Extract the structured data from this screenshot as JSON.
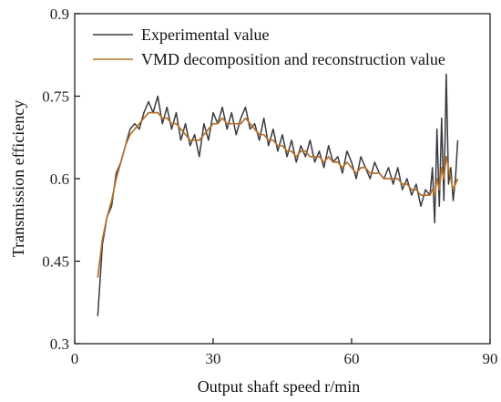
{
  "chart_data": {
    "type": "line",
    "xlabel": "Output shaft speed r/min",
    "ylabel": "Transmission efficiency",
    "xlim": [
      0,
      90
    ],
    "ylim": [
      0.3,
      0.9
    ],
    "xticks": [
      0,
      30,
      60,
      90
    ],
    "yticks": [
      0.3,
      0.45,
      0.6,
      0.75,
      0.9
    ],
    "xtick_labels": [
      "0",
      "30",
      "60",
      "90"
    ],
    "ytick_labels": [
      "0.3",
      "0.45",
      "0.6",
      "0.75",
      "0.9"
    ],
    "legend_position": "top-right",
    "series": [
      {
        "name": "Experimental value",
        "color": "#3a3a40",
        "x": [
          5,
          6,
          7,
          8,
          9,
          10,
          11,
          12,
          13,
          14,
          15,
          16,
          17,
          18,
          19,
          20,
          21,
          22,
          23,
          24,
          25,
          26,
          27,
          28,
          29,
          30,
          31,
          32,
          33,
          34,
          35,
          36,
          37,
          38,
          39,
          40,
          41,
          42,
          43,
          44,
          45,
          46,
          47,
          48,
          49,
          50,
          51,
          52,
          53,
          54,
          55,
          56,
          57,
          58,
          59,
          60,
          61,
          62,
          63,
          64,
          65,
          66,
          67,
          68,
          69,
          70,
          71,
          72,
          73,
          74,
          75,
          76,
          77,
          77.5,
          78,
          78.5,
          79,
          79.5,
          80,
          80.5,
          81,
          81.5,
          82,
          82.5,
          83
        ],
        "y": [
          0.35,
          0.48,
          0.53,
          0.55,
          0.61,
          0.63,
          0.66,
          0.69,
          0.7,
          0.69,
          0.72,
          0.74,
          0.72,
          0.75,
          0.7,
          0.73,
          0.69,
          0.72,
          0.67,
          0.7,
          0.66,
          0.68,
          0.64,
          0.7,
          0.67,
          0.72,
          0.7,
          0.73,
          0.69,
          0.72,
          0.68,
          0.71,
          0.73,
          0.69,
          0.7,
          0.67,
          0.71,
          0.66,
          0.69,
          0.65,
          0.68,
          0.64,
          0.67,
          0.63,
          0.66,
          0.64,
          0.67,
          0.63,
          0.65,
          0.62,
          0.66,
          0.63,
          0.64,
          0.61,
          0.65,
          0.63,
          0.6,
          0.64,
          0.62,
          0.6,
          0.63,
          0.61,
          0.6,
          0.62,
          0.59,
          0.62,
          0.58,
          0.6,
          0.57,
          0.59,
          0.55,
          0.58,
          0.57,
          0.62,
          0.52,
          0.69,
          0.55,
          0.71,
          0.56,
          0.79,
          0.59,
          0.62,
          0.56,
          0.6,
          0.67
        ]
      },
      {
        "name": "VMD decomposition and reconstruction value",
        "color": "#b5722a",
        "x": [
          5,
          6,
          7,
          8,
          9,
          10,
          11,
          12,
          13,
          14,
          15,
          16,
          17,
          18,
          19,
          20,
          21,
          22,
          23,
          24,
          25,
          26,
          27,
          28,
          29,
          30,
          31,
          32,
          33,
          34,
          35,
          36,
          37,
          38,
          39,
          40,
          41,
          42,
          43,
          44,
          45,
          46,
          47,
          48,
          49,
          50,
          51,
          52,
          53,
          54,
          55,
          56,
          57,
          58,
          59,
          60,
          61,
          62,
          63,
          64,
          65,
          66,
          67,
          68,
          69,
          70,
          71,
          72,
          73,
          74,
          75,
          76,
          77,
          77.5,
          78,
          78.5,
          79,
          79.5,
          80,
          80.5,
          81,
          81.5,
          82,
          82.5,
          83
        ],
        "y": [
          0.42,
          0.49,
          0.53,
          0.56,
          0.6,
          0.63,
          0.66,
          0.68,
          0.69,
          0.7,
          0.71,
          0.72,
          0.72,
          0.72,
          0.71,
          0.71,
          0.7,
          0.7,
          0.69,
          0.68,
          0.67,
          0.67,
          0.67,
          0.68,
          0.69,
          0.7,
          0.7,
          0.71,
          0.7,
          0.7,
          0.7,
          0.7,
          0.71,
          0.7,
          0.69,
          0.68,
          0.68,
          0.67,
          0.67,
          0.66,
          0.66,
          0.65,
          0.65,
          0.64,
          0.65,
          0.65,
          0.64,
          0.64,
          0.64,
          0.63,
          0.64,
          0.63,
          0.63,
          0.62,
          0.63,
          0.62,
          0.61,
          0.62,
          0.62,
          0.61,
          0.61,
          0.61,
          0.6,
          0.6,
          0.6,
          0.6,
          0.59,
          0.59,
          0.58,
          0.58,
          0.57,
          0.57,
          0.57,
          0.58,
          0.57,
          0.6,
          0.58,
          0.62,
          0.6,
          0.64,
          0.62,
          0.6,
          0.58,
          0.59,
          0.6
        ]
      }
    ]
  }
}
